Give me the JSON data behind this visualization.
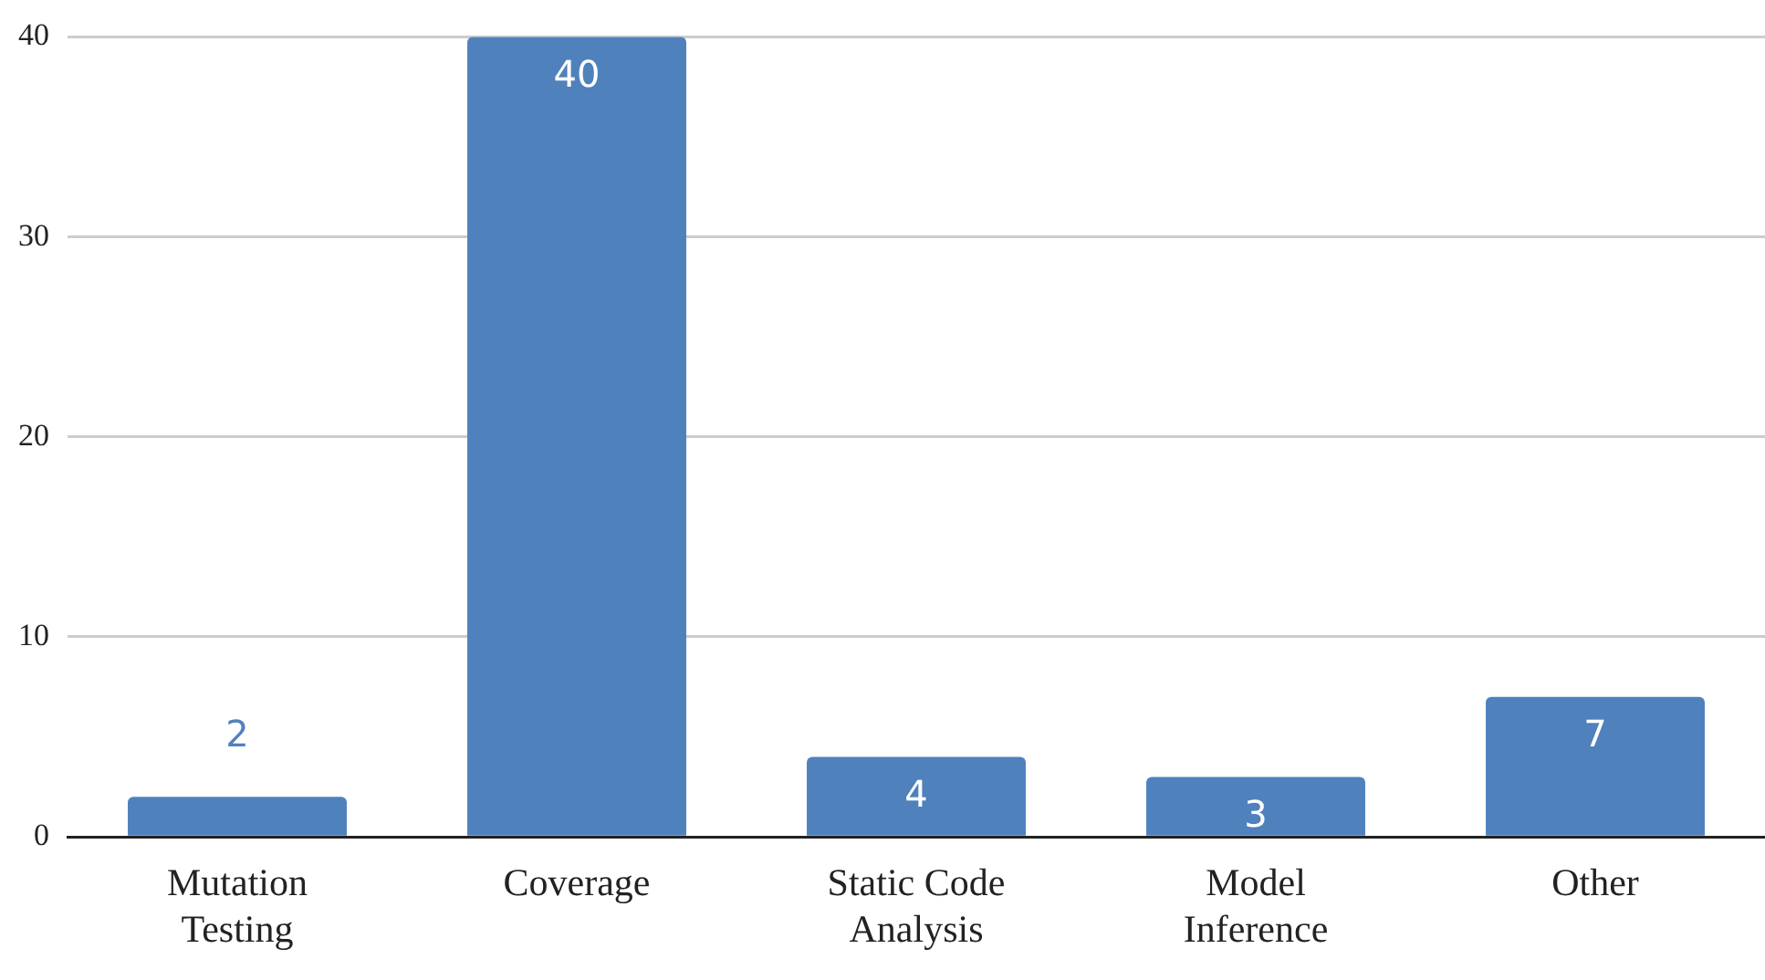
{
  "chart_data": {
    "type": "bar",
    "categories": [
      "Mutation Testing",
      "Coverage",
      "Static Code Analysis",
      "Model Inference",
      "Other"
    ],
    "values": [
      2,
      40,
      4,
      3,
      7
    ],
    "color": "#4f81bd",
    "ylim": [
      0,
      40
    ],
    "yticks": [
      0,
      10,
      20,
      30,
      40
    ],
    "grid": "y",
    "data_labels": true
  }
}
